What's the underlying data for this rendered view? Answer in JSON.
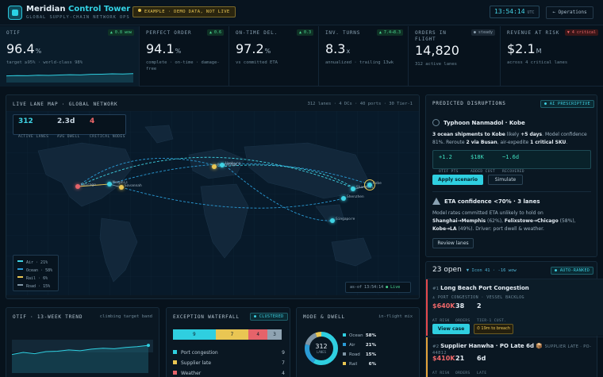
{
  "header": {
    "brand_a": "Meridian",
    "brand_b": "Control Tower",
    "subtitle": "GLOBAL SUPPLY-CHAIN NETWORK OPS",
    "example_badge": "EXAMPLE · DEMO DATA, NOT LIVE",
    "clock": "13:54:14",
    "clock_tz": "UTC",
    "operations_btn": "← Operations"
  },
  "kpis": [
    {
      "label": "OTIF",
      "value": "96.4",
      "unit": "%",
      "badge": "▲ 0.8 wow",
      "sub": "target ≥95% · world-class 98%"
    },
    {
      "label": "PERFECT ORDER",
      "value": "94.1",
      "unit": "%",
      "badge": "▲ 0.6",
      "sub": "complete · on-time · damage-free"
    },
    {
      "label": "ON-TIME DEL.",
      "value": "97.2",
      "unit": "%",
      "badge": "▲ 0.3",
      "sub": "vs committed ETA"
    },
    {
      "label": "INV. TURNS",
      "value": "8.3",
      "unit": "x",
      "badge": "▲ 7.4→8.3",
      "sub": "annualized · trailing 13wk"
    },
    {
      "label": "ORDERS IN FLIGHT",
      "value": "14,820",
      "unit": "",
      "badge": "● steady",
      "sub": "312 active lanes"
    },
    {
      "label": "REVENUE AT RISK",
      "value": "$2.1",
      "unit": "M",
      "badge": "▼ 4 critical",
      "sub": "across 4 critical lanes"
    }
  ],
  "otif_spark": [
    0.62,
    0.6,
    0.61,
    0.58,
    0.59,
    0.57,
    0.55,
    0.56,
    0.53,
    0.52,
    0.5,
    0.51,
    0.49
  ],
  "map": {
    "title": "LIVE LANE MAP · GLOBAL NETWORK",
    "meta": "312 lanes · 4 DCs · 40 ports · 30 Tier-1",
    "stats": [
      {
        "value": "312",
        "label": "ACTIVE LANES",
        "color": "#3fd3e4"
      },
      {
        "value": "2.3d",
        "label": "AVG DWELL",
        "color": "#e6eef5"
      },
      {
        "value": "4",
        "label": "CRITICAL NODES",
        "color": "#f0686a"
      }
    ],
    "nodes": [
      "Chicago",
      "Memphis",
      "Savannah",
      "Rotterdam",
      "Hamburg",
      "Shenzhen",
      "Shanghai",
      "Kobe",
      "Singapore"
    ],
    "legend": [
      {
        "label": "Air · 21%",
        "color": "#3fd3e4"
      },
      {
        "label": "Ocean · 58%",
        "color": "#2a9bd6"
      },
      {
        "label": "Rail · 6%",
        "color": "#e9c653"
      },
      {
        "label": "Road · 15%",
        "color": "#7f95a5"
      }
    ],
    "asof": "as-of 13:54:14",
    "live": "● Live"
  },
  "disruptions": {
    "title": "PREDICTED DISRUPTIONS",
    "tag": "● AI PRESCRIPTIVE",
    "event1": {
      "title": "Typhoon Nanmadol · Kobe",
      "t1": "3 ocean shipments to Kobe",
      "t2": " likely ",
      "t3": "+5 days",
      "t4": ". Model confidence 81%. Reroute ",
      "t5": "2 via Busan",
      "t6": ", air-expedite ",
      "t7": "1 critical SKU",
      "t8": ".",
      "metrics": [
        {
          "value": "+1.2",
          "label": "OTIF PTS"
        },
        {
          "value": "$18K",
          "label": "ADDED COST"
        },
        {
          "value": "~1.6d",
          "label": "RECOVERED"
        }
      ],
      "apply": "Apply scenario",
      "simulate": "Simulate"
    },
    "event2": {
      "title": "ETA confidence <70% · 3 lanes",
      "t1": "Model rates committed ETA unlikely to hold on ",
      "t2": "Shanghai→Memphis",
      " t3": "",
      "t3": " (62%), ",
      "t4": "Felixstowe→Chicago",
      "t5": " (58%), ",
      "t6": "Kobe→LA",
      "t7": " (49%). Driver: port dwell & weather.",
      "review": "Review lanes"
    }
  },
  "queue": {
    "count": "23 open",
    "meta": "▼ Icon 41 · -16 wow",
    "tag": "● AUTO-RANKED",
    "items": [
      {
        "num": "#1",
        "title": "Long Beach Port Congestion",
        "icon": "⚓",
        "sub": "PORT CONGESTION · VESSEL BACKLOG",
        "m": [
          {
            "v": "$640K",
            "l": "AT RISK"
          },
          {
            "v": "38",
            "l": "ORDERS"
          },
          {
            "v": "2",
            "l": "TIER-1 CUST."
          }
        ],
        "view": "View case",
        "sla": "⏱ 19m to breach"
      },
      {
        "num": "#2",
        "title": "Supplier Hanwha · PO Late 6d",
        "icon": "📦",
        "sub": "SUPPLIER LATE · PO-44812",
        "m": [
          {
            "v": "$410K",
            "l": "AT RISK"
          },
          {
            "v": "21",
            "l": "ORDERS"
          },
          {
            "v": "6d",
            "l": "LATE"
          }
        ]
      }
    ]
  },
  "otif_trend": {
    "title": "OTIF · 13-WEEK TREND",
    "meta": "climbing target band",
    "chart_data": {
      "type": "area",
      "values": [
        0.55,
        0.5,
        0.53,
        0.48,
        0.47,
        0.44,
        0.46,
        0.42,
        0.4,
        0.41,
        0.38,
        0.36,
        0.33
      ]
    }
  },
  "waterfall": {
    "title": "EXCEPTION WATERFALL",
    "tag": "● CLUSTERED",
    "chart_data": {
      "type": "bar",
      "segments": [
        {
          "value": 9,
          "color": "#2fcfe0"
        },
        {
          "value": 7,
          "color": "#e9c653"
        },
        {
          "value": 4,
          "color": "#e5636a"
        },
        {
          "value": 3,
          "color": "#8fa3b2"
        }
      ]
    },
    "rows": [
      {
        "label": "Port congestion",
        "value": "9",
        "color": "#2fcfe0"
      },
      {
        "label": "Supplier late",
        "value": "7",
        "color": "#e9c653"
      },
      {
        "label": "Weather",
        "value": "4",
        "color": "#e5636a"
      }
    ]
  },
  "mode": {
    "title": "MODE & DWELL",
    "meta": "in-flight mix",
    "center": "312",
    "center_label": "LANES",
    "chart_data": {
      "type": "pie",
      "slices": [
        {
          "label": "Ocean",
          "value": 58,
          "display": "58%",
          "color": "#2fcfe0"
        },
        {
          "label": "Air",
          "value": 21,
          "display": "21%",
          "color": "#2a9bd6"
        },
        {
          "label": "Road",
          "value": 15,
          "display": "15%",
          "color": "#7f95a5"
        },
        {
          "label": "Rail",
          "value": 6,
          "display": "6%",
          "color": "#e9c653"
        }
      ]
    }
  }
}
